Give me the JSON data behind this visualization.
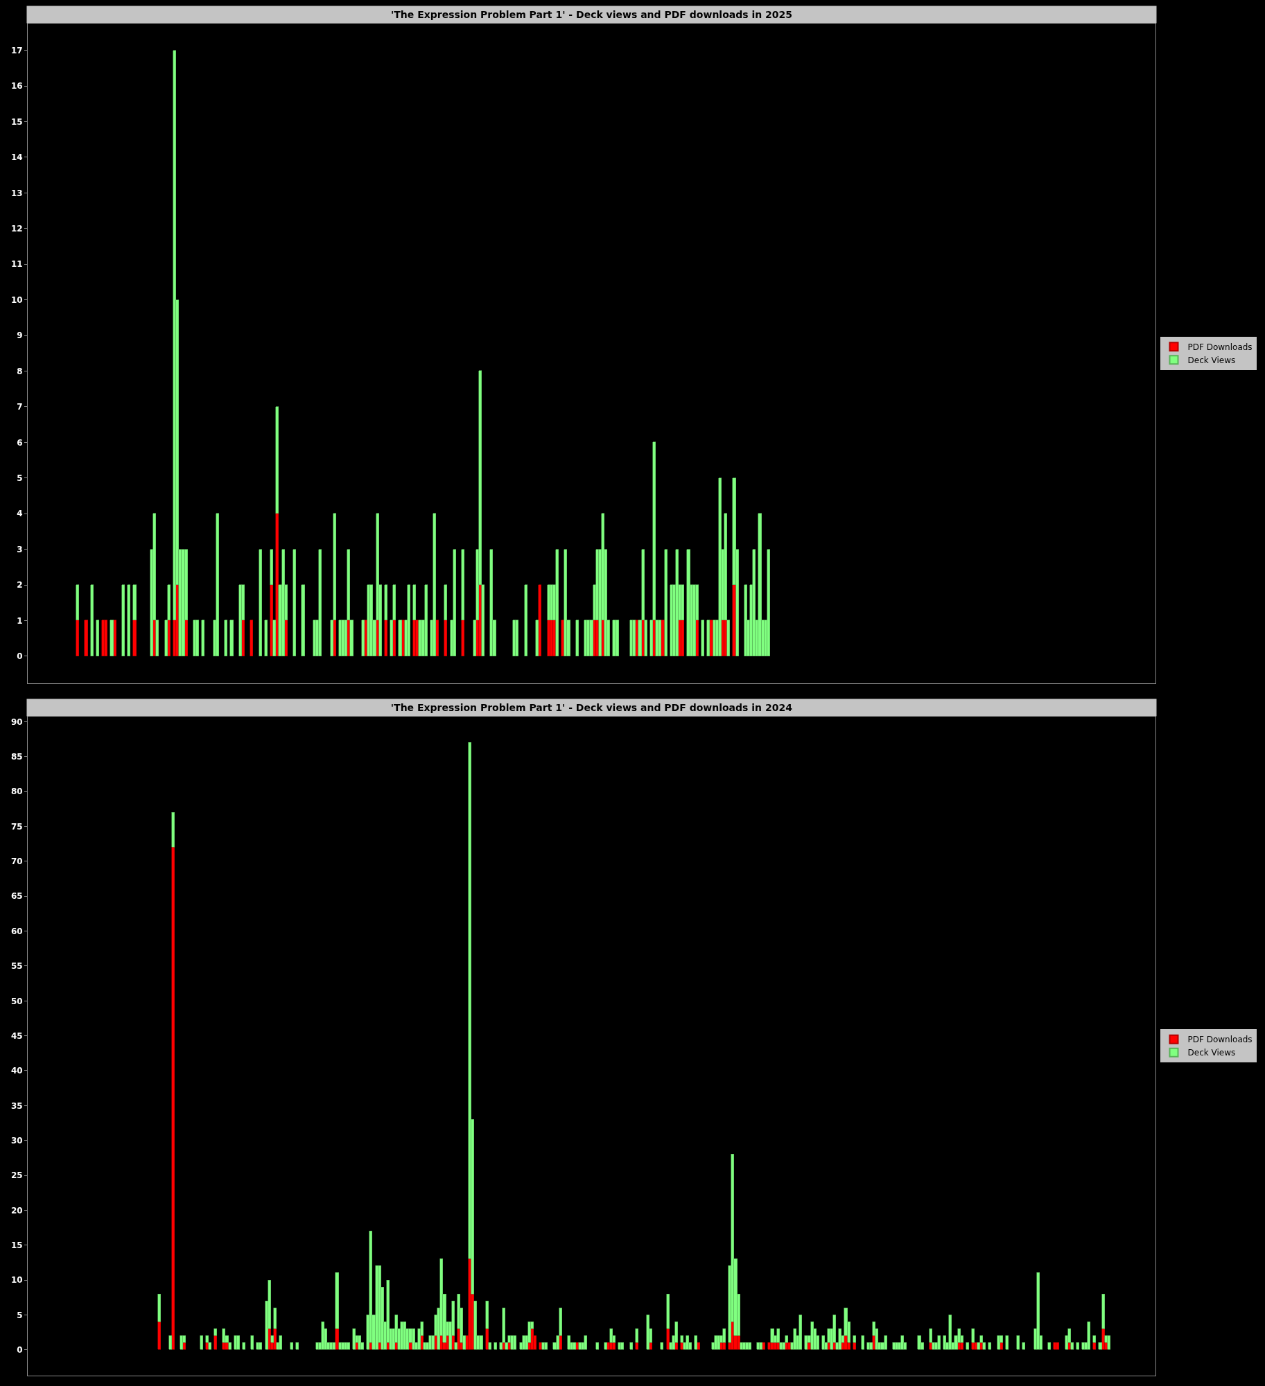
{
  "chart_data": [
    {
      "type": "bar",
      "title": "'The Expression Problem Part 1' - Deck views and PDF downloads in 2025",
      "stacked": true,
      "legend": "right",
      "grid": false,
      "tick_labels": "y",
      "ylim": [
        -0.75,
        17.75
      ],
      "yticks": [
        0,
        1,
        2,
        3,
        4,
        5,
        6,
        7,
        8,
        9,
        10,
        11,
        12,
        13,
        14,
        15,
        16,
        17
      ],
      "categories": [
        null,
        null,
        null,
        null,
        null,
        null,
        null,
        null,
        null,
        null,
        null,
        null,
        null,
        null,
        null,
        null,
        null,
        null,
        null,
        null,
        null,
        null,
        null,
        null,
        null,
        null,
        null,
        null,
        null,
        null,
        null,
        null,
        null,
        null,
        null,
        null,
        null,
        null,
        null,
        null,
        null,
        null,
        null,
        null,
        null,
        null,
        null,
        null,
        null,
        null,
        null,
        null,
        null,
        null,
        null,
        null,
        null,
        null,
        null,
        null,
        null,
        null,
        null,
        null,
        null,
        null,
        null,
        null,
        null,
        null,
        null,
        null,
        null,
        null,
        null,
        null,
        null,
        null,
        null,
        null,
        null,
        null,
        null,
        null,
        null,
        null,
        null,
        null,
        null,
        null,
        null,
        null,
        null,
        null,
        null,
        null,
        null,
        null,
        null,
        null,
        null,
        null,
        null,
        null,
        null,
        null,
        null,
        null,
        null,
        null,
        null,
        null,
        null,
        null,
        null,
        null,
        null,
        null,
        null,
        null,
        null,
        null,
        null,
        null,
        null,
        null,
        null,
        null,
        null,
        null,
        null,
        null,
        null,
        null,
        null,
        null,
        null,
        null,
        null,
        null,
        null,
        null,
        null,
        null,
        null,
        null,
        null,
        null,
        null,
        null,
        null,
        null,
        null,
        null,
        null,
        null,
        null,
        null,
        null,
        null,
        null,
        null,
        null,
        null,
        null,
        null,
        null,
        null,
        null,
        null,
        null,
        null,
        null,
        null,
        null,
        null,
        null,
        null,
        null,
        null,
        null,
        null,
        null,
        null,
        null,
        null,
        null,
        null,
        null,
        null,
        null,
        null,
        null,
        null,
        null,
        null,
        null,
        null,
        null,
        null,
        null,
        null,
        null,
        null,
        null,
        null,
        null,
        null,
        null,
        null,
        null,
        null,
        null,
        null,
        null,
        null,
        null,
        null,
        null,
        null,
        null,
        null,
        null,
        null,
        null,
        null,
        null,
        null,
        null,
        null,
        null,
        null,
        null,
        null,
        null,
        null,
        null,
        null,
        null,
        null,
        null,
        null,
        null,
        null,
        null,
        null,
        null,
        null,
        null,
        null,
        null,
        null,
        null,
        null,
        null,
        null,
        null,
        null,
        null,
        null,
        null,
        null,
        null,
        null,
        null,
        null,
        null,
        null,
        null,
        null,
        null,
        null,
        null,
        null,
        null,
        null,
        null,
        null,
        null,
        null,
        null,
        null,
        null,
        null,
        null,
        null,
        null,
        null,
        null,
        null,
        null,
        null,
        null,
        null,
        null,
        null,
        null,
        null,
        null,
        null,
        null,
        null,
        null,
        null,
        null,
        null,
        null,
        null,
        null,
        null,
        null,
        null,
        null,
        null,
        null,
        null,
        null,
        null,
        null,
        null,
        null,
        null,
        null,
        null,
        null,
        null,
        null,
        null,
        null,
        null,
        null,
        null,
        null,
        null,
        null,
        null,
        null,
        null,
        null,
        null,
        null,
        null,
        null,
        null,
        null,
        null,
        null,
        null,
        null,
        null,
        null,
        null,
        null,
        null,
        null,
        null,
        null,
        null,
        null,
        null,
        null,
        null,
        null,
        null,
        null,
        null,
        null,
        null,
        null,
        null,
        null,
        null,
        null,
        null,
        null,
        null,
        null,
        null,
        null,
        null,
        null,
        null,
        null,
        null,
        null,
        null,
        null,
        null,
        null,
        null,
        null,
        null,
        null,
        null,
        null
      ],
      "series": [
        {
          "name": "PDF Downloads",
          "color": "#ff0000",
          "values": [
            0,
            0,
            0,
            0,
            0,
            0,
            0,
            0,
            0,
            0,
            0,
            0,
            0,
            0,
            0,
            0,
            0,
            1,
            0,
            0,
            1,
            0,
            0,
            0,
            0,
            0,
            1,
            1,
            0,
            0,
            1,
            0,
            0,
            0,
            0,
            0,
            0,
            1,
            0,
            0,
            0,
            0,
            0,
            0,
            1,
            0,
            0,
            0,
            0,
            1,
            0,
            1,
            2,
            0,
            0,
            1,
            0,
            0,
            0,
            0,
            0,
            0,
            0,
            0,
            0,
            0,
            0,
            0,
            0,
            0,
            0,
            0,
            0,
            0,
            0,
            1,
            0,
            0,
            1,
            0,
            0,
            0,
            0,
            0,
            0,
            2,
            0,
            4,
            0,
            0,
            1,
            0,
            0,
            0,
            0,
            0,
            0,
            0,
            0,
            0,
            0,
            0,
            0,
            0,
            0,
            0,
            0,
            1,
            0,
            0,
            0,
            0,
            1,
            0,
            0,
            0,
            0,
            0,
            1,
            0,
            0,
            0,
            1,
            0,
            0,
            1,
            0,
            0,
            1,
            0,
            0,
            1,
            0,
            0,
            0,
            1,
            1,
            0,
            0,
            0,
            0,
            0,
            0,
            1,
            0,
            0,
            1,
            0,
            0,
            0,
            0,
            0,
            1,
            0,
            0,
            0,
            0,
            1,
            2,
            0,
            0,
            0,
            0,
            0,
            0,
            0,
            0,
            0,
            0,
            0,
            0,
            0,
            0,
            0,
            0,
            0,
            0,
            0,
            0,
            2,
            0,
            0,
            1,
            1,
            1,
            0,
            0,
            1,
            0,
            0,
            0,
            0,
            0,
            0,
            0,
            0,
            0,
            0,
            1,
            1,
            0,
            1,
            0,
            0,
            0,
            0,
            0,
            0,
            0,
            0,
            0,
            0,
            0,
            1,
            0,
            1,
            0,
            0,
            0,
            1,
            0,
            0,
            1,
            0,
            0,
            0,
            0,
            0,
            1,
            1,
            0,
            0,
            0,
            0,
            1,
            0,
            0,
            0,
            0,
            1,
            0,
            0,
            0,
            1,
            1,
            0,
            0,
            2,
            0,
            0,
            0,
            0,
            0,
            0,
            0,
            0,
            0,
            0,
            0,
            0,
            0,
            0,
            0,
            0,
            0,
            0,
            0,
            0,
            0,
            0,
            0,
            0,
            0,
            0,
            0,
            0,
            0,
            0,
            0,
            0,
            0,
            0,
            0,
            0,
            0,
            0,
            0,
            0,
            0,
            0,
            0,
            0,
            0,
            0,
            0,
            0,
            0,
            0,
            0,
            0,
            0,
            0,
            0,
            0,
            0,
            0,
            0,
            0,
            0,
            0,
            0,
            0,
            0,
            0,
            0,
            0,
            0,
            0,
            0,
            0,
            0,
            0,
            0,
            0,
            0,
            0,
            0,
            0,
            0,
            0,
            0,
            0,
            0,
            0,
            0,
            0,
            0,
            0,
            0,
            0,
            0,
            0,
            0,
            0,
            0,
            0,
            0,
            0,
            0,
            0,
            0,
            0,
            0,
            0,
            0,
            0,
            0,
            0,
            0,
            0,
            0,
            0,
            0,
            0,
            0,
            0,
            0,
            0,
            0,
            0,
            0,
            0,
            0,
            0,
            0,
            0,
            0,
            0,
            0,
            0,
            0,
            0,
            0,
            0,
            0,
            0,
            0,
            0,
            0,
            0,
            0,
            0,
            0,
            0,
            0
          ]
        },
        {
          "name": "Deck Views",
          "color": "#80ff80",
          "values": [
            0,
            0,
            0,
            0,
            0,
            0,
            0,
            0,
            0,
            0,
            0,
            0,
            0,
            0,
            0,
            0,
            0,
            1,
            0,
            0,
            0,
            0,
            2,
            0,
            1,
            0,
            0,
            0,
            0,
            1,
            0,
            0,
            0,
            2,
            0,
            2,
            0,
            1,
            0,
            0,
            0,
            0,
            0,
            3,
            3,
            1,
            0,
            0,
            1,
            1,
            0,
            16,
            8,
            3,
            3,
            2,
            0,
            0,
            1,
            1,
            0,
            1,
            0,
            0,
            0,
            1,
            4,
            0,
            0,
            1,
            0,
            1,
            0,
            0,
            2,
            1,
            0,
            0,
            0,
            0,
            0,
            3,
            0,
            1,
            0,
            1,
            1,
            3,
            2,
            3,
            1,
            0,
            0,
            3,
            0,
            0,
            2,
            0,
            0,
            0,
            1,
            1,
            3,
            0,
            0,
            0,
            1,
            3,
            0,
            1,
            1,
            1,
            2,
            1,
            0,
            0,
            0,
            1,
            0,
            2,
            2,
            1,
            3,
            2,
            0,
            1,
            0,
            1,
            1,
            0,
            1,
            0,
            1,
            2,
            0,
            1,
            0,
            1,
            1,
            2,
            0,
            1,
            4,
            0,
            0,
            0,
            1,
            0,
            1,
            3,
            0,
            0,
            2,
            0,
            0,
            0,
            1,
            2,
            6,
            2,
            0,
            0,
            3,
            1,
            0,
            0,
            0,
            0,
            0,
            0,
            1,
            1,
            0,
            0,
            2,
            0,
            0,
            0,
            1,
            0,
            0,
            0,
            1,
            1,
            1,
            3,
            0,
            0,
            3,
            1,
            0,
            0,
            1,
            0,
            0,
            1,
            1,
            1,
            1,
            2,
            3,
            3,
            3,
            1,
            0,
            1,
            1,
            0,
            0,
            0,
            0,
            1,
            1,
            0,
            1,
            2,
            1,
            0,
            1,
            5,
            1,
            1,
            0,
            3,
            0,
            2,
            2,
            3,
            1,
            1,
            0,
            3,
            2,
            2,
            1,
            0,
            1,
            0,
            1,
            0,
            1,
            1,
            5,
            2,
            3,
            1,
            0,
            3,
            3,
            0,
            0,
            2,
            1,
            2,
            3,
            1,
            4,
            1,
            1,
            3,
            0,
            0,
            0,
            0,
            0,
            0,
            0,
            0,
            0,
            0,
            0,
            0,
            0,
            0,
            0,
            0,
            0,
            0,
            0,
            0,
            0,
            0,
            0,
            0,
            0,
            0,
            0,
            0,
            0,
            0,
            0,
            0,
            0,
            0,
            0,
            0,
            0,
            0,
            0,
            0,
            0,
            0,
            0,
            0,
            0,
            0,
            0,
            0,
            0,
            0,
            0,
            0,
            0,
            0,
            0,
            0,
            0,
            0,
            0,
            0,
            0,
            0,
            0,
            0,
            0,
            0,
            0,
            0,
            0,
            0,
            0,
            0,
            0,
            0,
            0,
            0,
            0,
            0,
            0,
            0,
            0,
            0,
            0,
            0,
            0,
            0,
            0,
            0,
            0,
            0,
            0,
            0,
            0,
            0,
            0,
            0,
            0,
            0,
            0,
            0,
            0,
            0,
            0,
            0,
            0,
            0,
            0,
            0,
            0,
            0,
            0,
            0,
            0,
            0,
            0,
            0,
            0,
            0,
            0,
            0,
            0,
            0,
            0,
            0,
            0,
            0,
            0,
            0,
            0,
            0,
            0,
            0,
            0,
            0,
            0
          ]
        }
      ]
    },
    {
      "type": "bar",
      "title": "'The Expression Problem Part 1' - Deck views and PDF downloads in 2024",
      "stacked": true,
      "legend": "right",
      "grid": false,
      "tick_labels": "y",
      "ylim": [
        -3.7,
        90.8
      ],
      "yticks": [
        0,
        5,
        10,
        15,
        20,
        25,
        30,
        35,
        40,
        45,
        50,
        55,
        60,
        65,
        70,
        75,
        80,
        85,
        90
      ],
      "categories": [
        null,
        null,
        null,
        null,
        null,
        null,
        null,
        null,
        null,
        null,
        null,
        null,
        null,
        null,
        null,
        null,
        null,
        null,
        null,
        null,
        null,
        null,
        null,
        null,
        null,
        null,
        null,
        null,
        null,
        null,
        null,
        null,
        null,
        null,
        null,
        null,
        null,
        null,
        null,
        null,
        null,
        null,
        null,
        null,
        null,
        null,
        null,
        null,
        null,
        null,
        null,
        null,
        null,
        null,
        null,
        null,
        null,
        null,
        null,
        null,
        null,
        null,
        null,
        null,
        null,
        null,
        null,
        null,
        null,
        null,
        null,
        null,
        null,
        null,
        null,
        null,
        null,
        null,
        null,
        null,
        null,
        null,
        null,
        null,
        null,
        null,
        null,
        null,
        null,
        null,
        null,
        null,
        null,
        null,
        null,
        null,
        null,
        null,
        null,
        null,
        null,
        null,
        null,
        null,
        null,
        null,
        null,
        null,
        null,
        null,
        null,
        null,
        null,
        null,
        null,
        null,
        null,
        null,
        null,
        null,
        null,
        null,
        null,
        null,
        null,
        null,
        null,
        null,
        null,
        null,
        null,
        null,
        null,
        null,
        null,
        null,
        null,
        null,
        null,
        null,
        null,
        null,
        null,
        null,
        null,
        null,
        null,
        null,
        null,
        null,
        null,
        null,
        null,
        null,
        null,
        null,
        null,
        null,
        null,
        null,
        null,
        null,
        null,
        null,
        null,
        null,
        null,
        null,
        null,
        null,
        null,
        null,
        null,
        null,
        null,
        null,
        null,
        null,
        null,
        null,
        null,
        null,
        null,
        null,
        null,
        null,
        null,
        null,
        null,
        null,
        null,
        null,
        null,
        null,
        null,
        null,
        null,
        null,
        null,
        null,
        null,
        null,
        null,
        null,
        null,
        null,
        null,
        null,
        null,
        null,
        null,
        null,
        null,
        null,
        null,
        null,
        null,
        null,
        null,
        null,
        null,
        null,
        null,
        null,
        null,
        null,
        null,
        null,
        null,
        null,
        null,
        null,
        null,
        null,
        null,
        null,
        null,
        null,
        null,
        null,
        null,
        null,
        null,
        null,
        null,
        null,
        null,
        null,
        null,
        null,
        null,
        null,
        null,
        null,
        null,
        null,
        null,
        null,
        null,
        null,
        null,
        null,
        null,
        null,
        null,
        null,
        null,
        null,
        null,
        null,
        null,
        null,
        null,
        null,
        null,
        null,
        null,
        null,
        null,
        null,
        null,
        null,
        null,
        null,
        null,
        null,
        null,
        null,
        null,
        null,
        null,
        null,
        null,
        null,
        null,
        null,
        null,
        null,
        null,
        null,
        null,
        null,
        null,
        null,
        null,
        null,
        null,
        null,
        null,
        null,
        null,
        null,
        null,
        null,
        null,
        null,
        null,
        null,
        null,
        null,
        null,
        null,
        null,
        null,
        null,
        null,
        null,
        null,
        null,
        null,
        null,
        null,
        null,
        null,
        null,
        null,
        null,
        null,
        null,
        null,
        null,
        null,
        null,
        null,
        null,
        null,
        null,
        null,
        null,
        null,
        null,
        null,
        null,
        null,
        null,
        null,
        null,
        null,
        null,
        null,
        null,
        null,
        null,
        null,
        null,
        null,
        null,
        null,
        null,
        null,
        null,
        null,
        null,
        null,
        null,
        null,
        null,
        null,
        null,
        null,
        null,
        null,
        null,
        null,
        null,
        null,
        null,
        null,
        null,
        null,
        null,
        null,
        null,
        null,
        null,
        null,
        null,
        null,
        null
      ],
      "series": [
        {
          "name": "PDF Downloads",
          "color": "#ff0000",
          "values": [
            0,
            0,
            0,
            0,
            0,
            0,
            0,
            0,
            0,
            0,
            0,
            0,
            0,
            0,
            0,
            0,
            0,
            0,
            0,
            0,
            0,
            0,
            0,
            0,
            0,
            0,
            0,
            0,
            0,
            0,
            0,
            0,
            0,
            0,
            0,
            0,
            0,
            0,
            0,
            0,
            0,
            0,
            0,
            0,
            0,
            0,
            4,
            0,
            0,
            0,
            0,
            72,
            0,
            0,
            0,
            1,
            0,
            0,
            0,
            0,
            0,
            0,
            0,
            1,
            0,
            0,
            2,
            0,
            0,
            1,
            1,
            0,
            0,
            0,
            0,
            0,
            0,
            0,
            0,
            0,
            0,
            0,
            0,
            0,
            0,
            3,
            1,
            3,
            0,
            0,
            0,
            0,
            0,
            0,
            0,
            0,
            0,
            0,
            0,
            0,
            0,
            0,
            0,
            0,
            0,
            0,
            0,
            0,
            0,
            3,
            0,
            0,
            0,
            0,
            0,
            0,
            1,
            0,
            0,
            0,
            0,
            1,
            0,
            0,
            1,
            0,
            0,
            1,
            0,
            0,
            1,
            0,
            0,
            0,
            0,
            1,
            0,
            0,
            0,
            2,
            0,
            0,
            0,
            0,
            2,
            0,
            2,
            1,
            2,
            0,
            2,
            0,
            3,
            1,
            0,
            2,
            13,
            8,
            0,
            0,
            0,
            0,
            3,
            0,
            0,
            0,
            0,
            0,
            1,
            0,
            1,
            0,
            0,
            0,
            0,
            0,
            0,
            1,
            3,
            2,
            0,
            1,
            0,
            0,
            0,
            0,
            0,
            0,
            2,
            0,
            0,
            0,
            0,
            0,
            1,
            0,
            0,
            0,
            0,
            0,
            0,
            0,
            0,
            0,
            0,
            1,
            1,
            1,
            0,
            0,
            0,
            0,
            0,
            0,
            0,
            1,
            0,
            0,
            0,
            0,
            1,
            0,
            0,
            0,
            0,
            0,
            3,
            0,
            0,
            1,
            0,
            1,
            0,
            0,
            0,
            0,
            0,
            1,
            0,
            0,
            0,
            0,
            0,
            0,
            0,
            1,
            1,
            0,
            1,
            4,
            2,
            2,
            0,
            0,
            0,
            0,
            0,
            0,
            0,
            0,
            1,
            0,
            1,
            1,
            1,
            1,
            0,
            0,
            1,
            1,
            0,
            0,
            0,
            0,
            0,
            0,
            1,
            0,
            0,
            0,
            0,
            0,
            0,
            1,
            0,
            1,
            0,
            0,
            1,
            2,
            1,
            0,
            1,
            0,
            0,
            0,
            0,
            0,
            0,
            2,
            0,
            0,
            0,
            0,
            0,
            0,
            0,
            0,
            0,
            0,
            0,
            0,
            0,
            0,
            0,
            0,
            0,
            0,
            0,
            1,
            0,
            0,
            0,
            0,
            0,
            0,
            0,
            0,
            0,
            1,
            1,
            0,
            0,
            0,
            1,
            1,
            0,
            1,
            0,
            0,
            0,
            0,
            0,
            0,
            1,
            0,
            0,
            0,
            0,
            0,
            0,
            0,
            0,
            0,
            0,
            0,
            0,
            0,
            0,
            0,
            0,
            0,
            0,
            1,
            1,
            0,
            0,
            0,
            1,
            0,
            0,
            0,
            0,
            0,
            0,
            0,
            0,
            1,
            0,
            0,
            3,
            1,
            0,
            0,
            0,
            0,
            0,
            0,
            0,
            0,
            0,
            0,
            0,
            0,
            0,
            0,
            0,
            0,
            0
          ]
        },
        {
          "name": "Deck Views",
          "color": "#80ff80",
          "values": [
            0,
            0,
            0,
            0,
            0,
            0,
            0,
            0,
            0,
            0,
            0,
            0,
            0,
            0,
            0,
            0,
            0,
            0,
            0,
            0,
            0,
            0,
            0,
            0,
            0,
            0,
            0,
            0,
            0,
            0,
            0,
            0,
            0,
            0,
            0,
            0,
            0,
            0,
            0,
            0,
            0,
            0,
            0,
            0,
            0,
            0,
            4,
            0,
            0,
            0,
            2,
            5,
            0,
            0,
            2,
            1,
            0,
            0,
            0,
            0,
            0,
            2,
            0,
            1,
            1,
            0,
            1,
            0,
            0,
            2,
            1,
            1,
            0,
            2,
            2,
            0,
            1,
            0,
            0,
            2,
            0,
            1,
            1,
            0,
            7,
            7,
            1,
            3,
            1,
            2,
            0,
            0,
            0,
            1,
            0,
            1,
            0,
            0,
            0,
            0,
            0,
            0,
            1,
            1,
            4,
            3,
            1,
            1,
            1,
            8,
            1,
            1,
            1,
            1,
            0,
            3,
            1,
            2,
            1,
            0,
            5,
            16,
            5,
            12,
            11,
            9,
            4,
            9,
            3,
            3,
            4,
            3,
            4,
            4,
            3,
            2,
            3,
            1,
            3,
            2,
            1,
            1,
            2,
            2,
            3,
            6,
            11,
            7,
            2,
            4,
            5,
            1,
            5,
            5,
            2,
            0,
            74,
            25,
            7,
            2,
            2,
            0,
            4,
            1,
            0,
            1,
            0,
            1,
            5,
            1,
            1,
            2,
            2,
            0,
            1,
            2,
            2,
            3,
            1,
            0,
            0,
            0,
            1,
            1,
            0,
            0,
            1,
            2,
            4,
            0,
            0,
            2,
            1,
            1,
            0,
            1,
            1,
            2,
            0,
            0,
            0,
            1,
            0,
            0,
            1,
            0,
            2,
            1,
            0,
            1,
            1,
            0,
            0,
            1,
            0,
            2,
            0,
            0,
            0,
            5,
            2,
            0,
            0,
            0,
            1,
            0,
            5,
            1,
            2,
            3,
            0,
            1,
            1,
            2,
            1,
            0,
            2,
            0,
            0,
            0,
            0,
            0,
            1,
            2,
            2,
            1,
            2,
            0,
            11,
            24,
            11,
            6,
            1,
            1,
            1,
            1,
            0,
            0,
            1,
            1,
            0,
            0,
            0,
            2,
            1,
            2,
            1,
            1,
            1,
            0,
            1,
            3,
            2,
            5,
            0,
            2,
            1,
            4,
            3,
            2,
            0,
            2,
            1,
            2,
            3,
            4,
            1,
            3,
            1,
            4,
            3,
            0,
            1,
            0,
            0,
            2,
            0,
            1,
            1,
            2,
            3,
            1,
            1,
            2,
            0,
            0,
            1,
            1,
            1,
            2,
            1,
            0,
            0,
            0,
            0,
            2,
            1,
            0,
            0,
            2,
            1,
            1,
            2,
            0,
            2,
            1,
            5,
            1,
            2,
            2,
            1,
            0,
            1,
            0,
            2,
            0,
            1,
            1,
            1,
            0,
            1,
            0,
            0,
            2,
            1,
            0,
            2,
            0,
            0,
            0,
            2,
            0,
            1,
            0,
            0,
            0,
            3,
            11,
            2,
            0,
            0,
            1,
            0,
            0,
            0,
            0,
            0,
            2,
            2,
            1,
            0,
            1,
            0,
            1,
            1,
            4,
            0,
            1,
            0,
            1,
            5,
            1,
            2,
            0,
            0,
            0,
            0,
            0,
            0,
            0,
            0,
            0,
            0,
            0,
            0,
            0,
            0,
            0,
            0
          ]
        }
      ]
    }
  ]
}
